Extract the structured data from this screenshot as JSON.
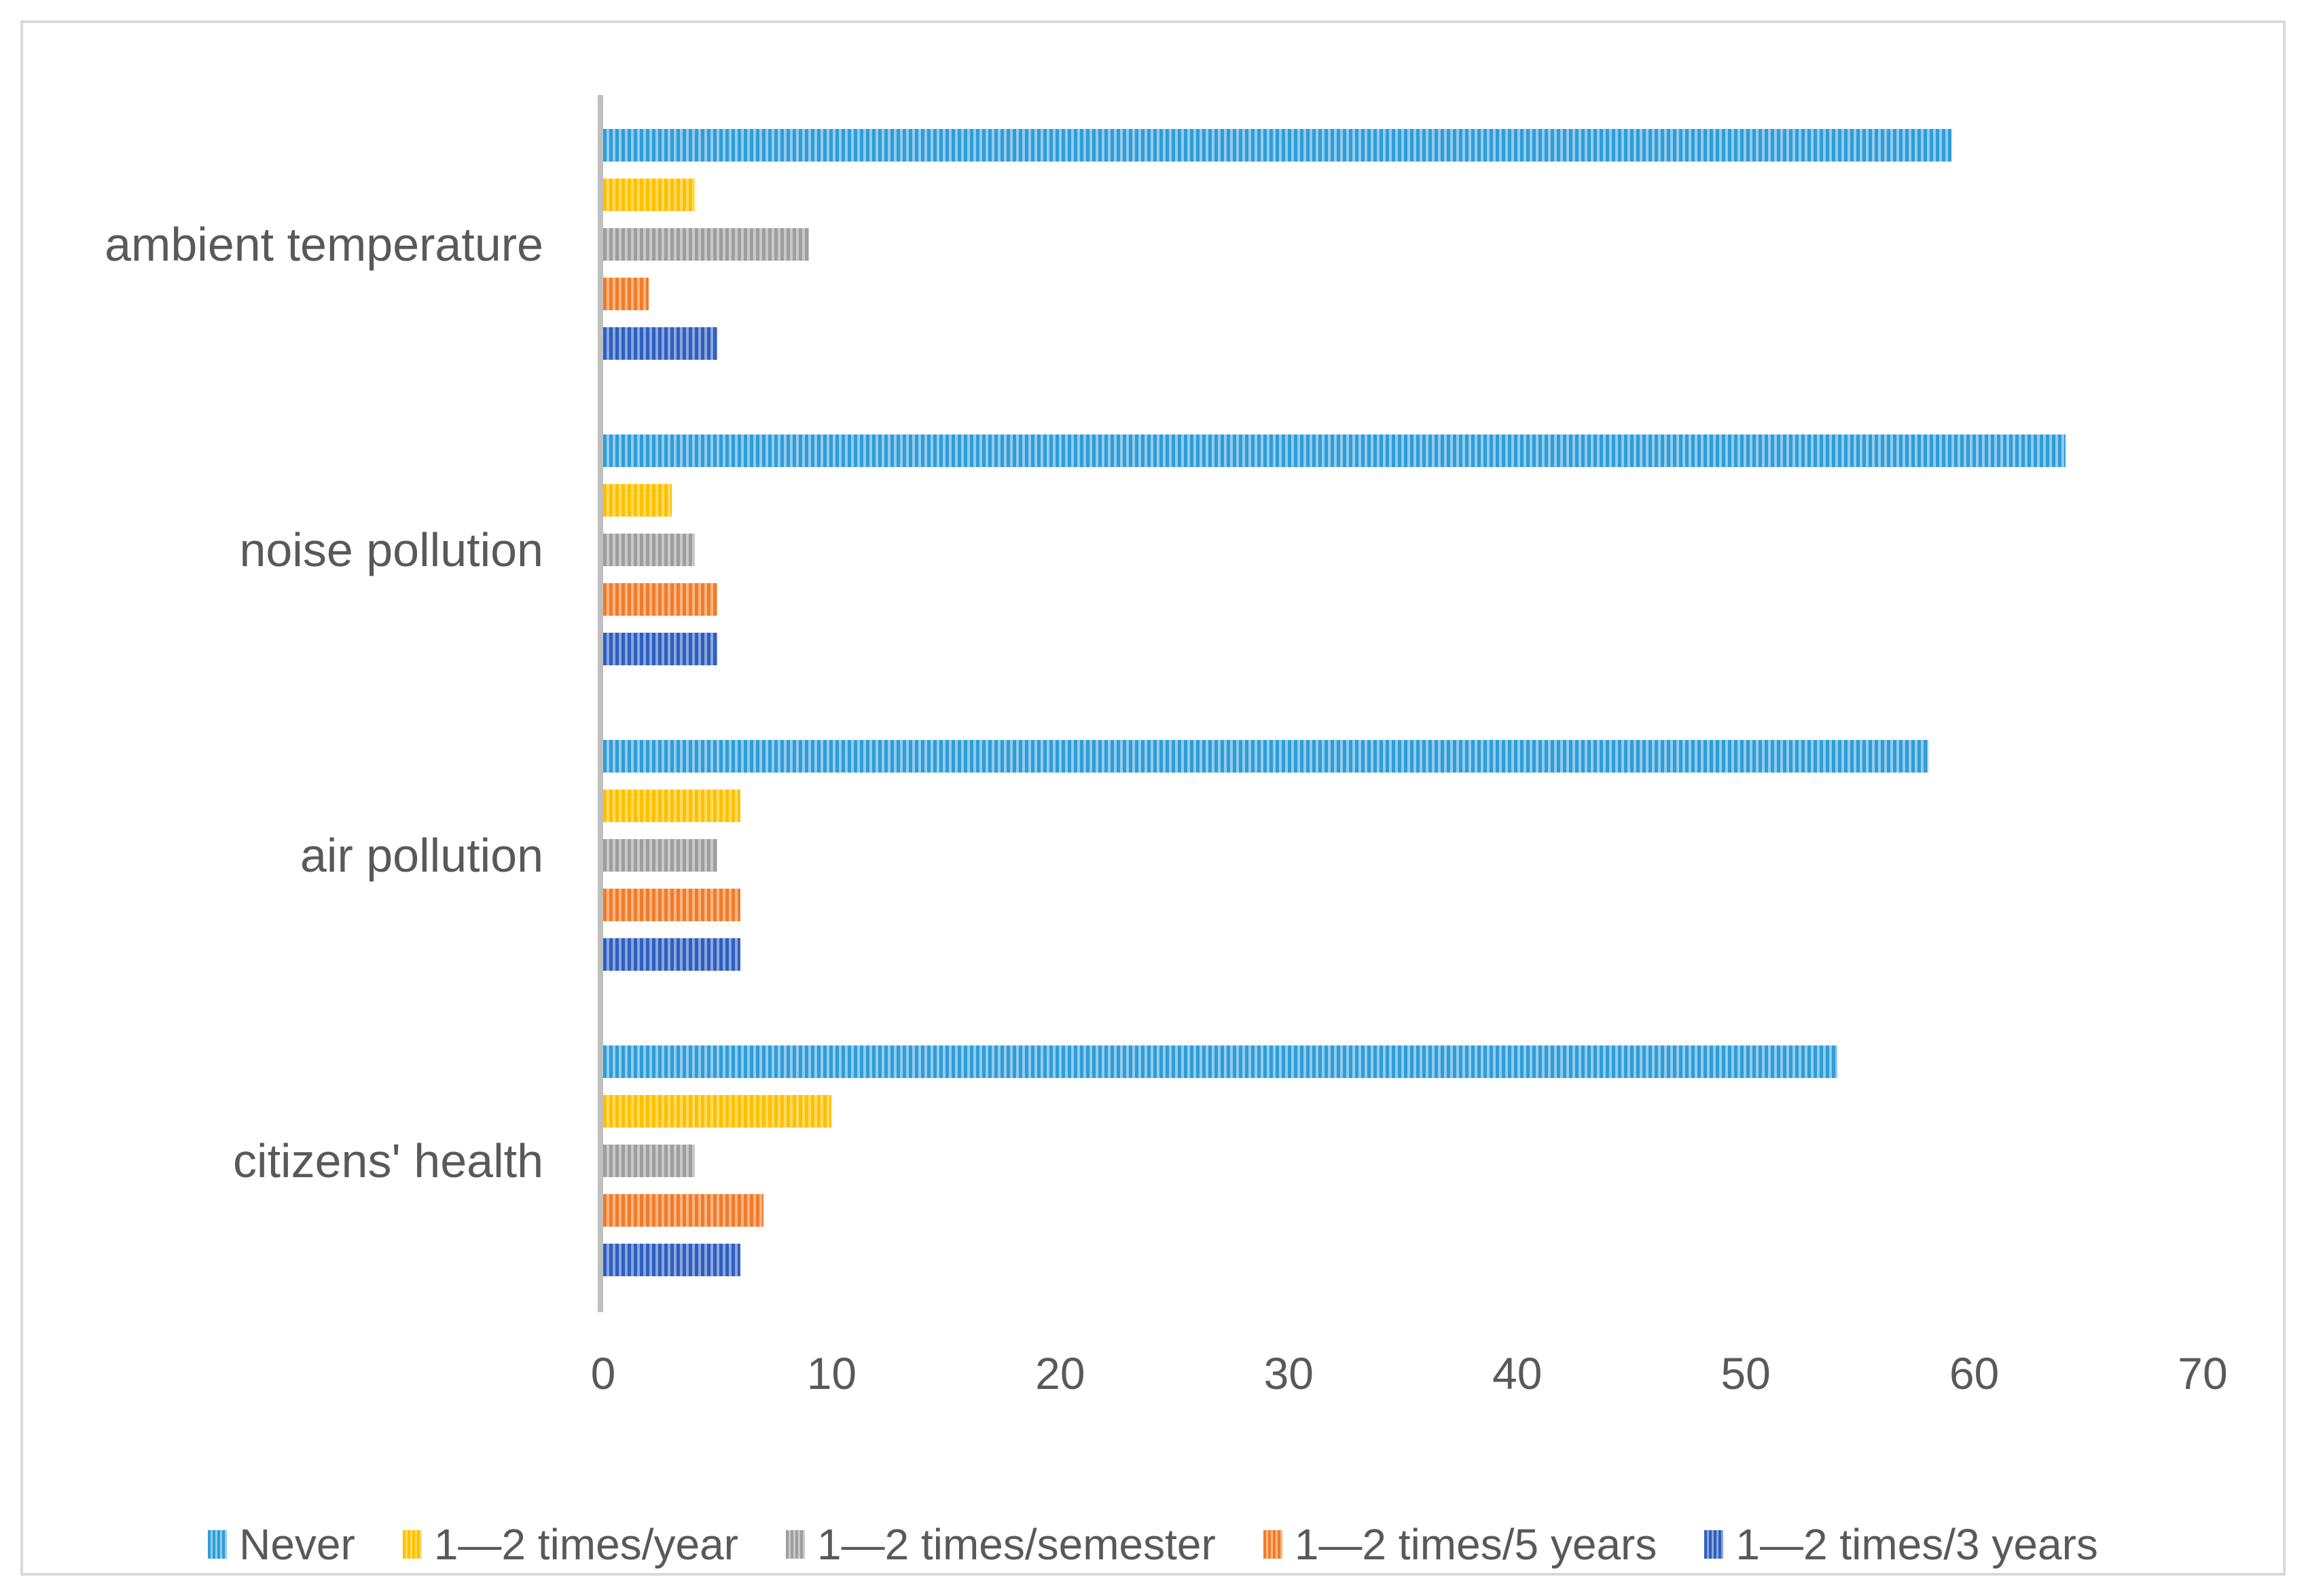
{
  "figure": {
    "background": "#FFFFFF",
    "border_color": "#D9D9D9"
  },
  "chart_data": {
    "type": "bar",
    "orientation": "horizontal",
    "title": "",
    "xlabel": "",
    "ylabel": "",
    "categories": [
      "ambient temperature",
      "noise pollution",
      "air pollution",
      "citizens' health"
    ],
    "series": [
      {
        "name": "Never",
        "values": [
          59,
          64,
          58,
          54
        ],
        "color": "#2E9DD8",
        "color_light": "#93CBEC"
      },
      {
        "name": "1—2 times/year",
        "values": [
          4,
          3,
          6,
          10
        ],
        "color": "#FFC000",
        "color_light": "#FFDC64"
      },
      {
        "name": "1—2 times/semester",
        "values": [
          9,
          4,
          5,
          4
        ],
        "color": "#9E9E9E",
        "color_light": "#C9C9C9"
      },
      {
        "name": "1—2 times/5 years",
        "values": [
          2,
          5,
          6,
          7
        ],
        "color": "#F07C2B",
        "color_light": "#FBB584"
      },
      {
        "name": "1—2 times/3 years",
        "values": [
          5,
          5,
          6,
          6
        ],
        "color": "#2D5FC0",
        "color_light": "#8CA6DC"
      }
    ],
    "xlim": [
      0,
      70
    ],
    "x_ticks": [
      "0",
      "10",
      "20",
      "30",
      "40",
      "50",
      "60",
      "70"
    ],
    "grid": false,
    "legend_position": "bottom",
    "bar_pattern": "vertical-stripes",
    "axis_color": "#BFBFBF",
    "text_color": "#595959"
  }
}
